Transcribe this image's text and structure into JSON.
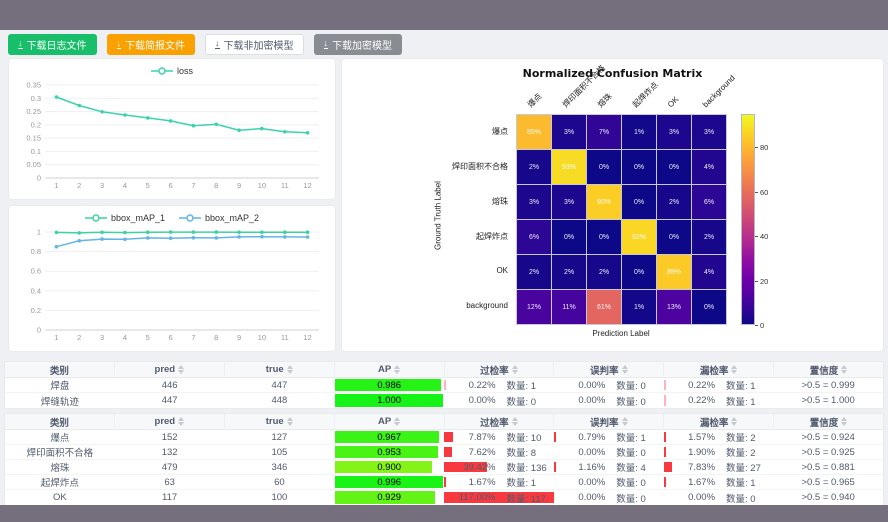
{
  "toolbar": {
    "download_icon": "↓",
    "buttons": [
      {
        "label": "下载日志文件",
        "variant": "success"
      },
      {
        "label": "下载简报文件",
        "variant": "warning"
      },
      {
        "label": "下载非加密模型",
        "variant": "default"
      },
      {
        "label": "下载加密模型",
        "variant": "dark"
      }
    ]
  },
  "chart_data": [
    {
      "type": "line",
      "title": "",
      "legend_position": "top",
      "x": [
        1,
        2,
        3,
        4,
        5,
        6,
        7,
        8,
        9,
        10,
        11,
        12
      ],
      "ylim": [
        0,
        0.35
      ],
      "yticks": [
        0,
        0.05,
        0.1,
        0.15,
        0.2,
        0.25,
        0.3,
        0.35
      ],
      "grid": true,
      "series": [
        {
          "name": "loss",
          "color": "#3bd2ad",
          "values": [
            0.305,
            0.273,
            0.249,
            0.237,
            0.226,
            0.215,
            0.197,
            0.202,
            0.18,
            0.186,
            0.174,
            0.17
          ]
        }
      ]
    },
    {
      "type": "line",
      "title": "",
      "legend_position": "top",
      "x": [
        1,
        2,
        3,
        4,
        5,
        6,
        7,
        8,
        9,
        10,
        11,
        12
      ],
      "ylim": [
        0,
        1
      ],
      "yticks": [
        0,
        0.2,
        0.4,
        0.6,
        0.8,
        1
      ],
      "grid": true,
      "series": [
        {
          "name": "bbox_mAP_1",
          "color": "#3dd2a0",
          "values": [
            0.996,
            0.991,
            0.997,
            0.994,
            0.998,
            0.999,
            0.999,
            0.999,
            0.998,
            0.998,
            0.998,
            0.998
          ]
        },
        {
          "name": "bbox_mAP_2",
          "color": "#64b4e4",
          "values": [
            0.85,
            0.91,
            0.928,
            0.925,
            0.94,
            0.937,
            0.941,
            0.94,
            0.95,
            0.952,
            0.95,
            0.949
          ]
        }
      ]
    },
    {
      "type": "heatmap",
      "title": "Normalized Confusion Matrix",
      "xlabel": "Prediction Label",
      "ylabel": "Ground Truth Label",
      "colormap": "plasma",
      "vmax": 95,
      "colorbar_ticks": [
        0,
        20,
        40,
        60,
        80
      ],
      "labels": [
        "爆点",
        "焊印面积不合格",
        "熔珠",
        "起焊炸点",
        "OK",
        "background"
      ],
      "unit": "%",
      "matrix": [
        [
          85,
          3,
          7,
          1,
          3,
          3
        ],
        [
          2,
          93,
          0,
          0,
          0,
          4
        ],
        [
          3,
          3,
          90,
          0,
          2,
          6
        ],
        [
          6,
          0,
          0,
          92,
          0,
          2
        ],
        [
          2,
          2,
          2,
          0,
          89,
          4
        ],
        [
          12,
          11,
          61,
          1,
          13,
          0
        ]
      ]
    }
  ],
  "tables": [
    {
      "rate_bar_color": "#ffb3c1",
      "headers": [
        {
          "label": "类别",
          "sortable": false
        },
        {
          "label": "pred",
          "sortable": true
        },
        {
          "label": "true",
          "sortable": true
        },
        {
          "label": "AP",
          "sortable": true
        },
        {
          "label": "过检率",
          "sortable": true
        },
        {
          "label": "误判率",
          "sortable": true
        },
        {
          "label": "漏检率",
          "sortable": true
        },
        {
          "label": "置信度",
          "sortable": true
        }
      ],
      "rows": [
        {
          "class": "焊盘",
          "pred": "446",
          "true": "447",
          "ap": "0.986",
          "rates": [
            {
              "pct": "0.22%",
              "count": "数量: 1"
            },
            {
              "pct": "0.00%",
              "count": "数量: 0"
            },
            {
              "pct": "0.22%",
              "count": "数量: 1"
            }
          ],
          "conf": ">0.5 = 0.999"
        },
        {
          "class": "焊缝轨迹",
          "pred": "447",
          "true": "448",
          "ap": "1.000",
          "rates": [
            {
              "pct": "0.00%",
              "count": "数量: 0"
            },
            {
              "pct": "0.00%",
              "count": "数量: 0"
            },
            {
              "pct": "0.22%",
              "count": "数量: 1"
            }
          ],
          "conf": ">0.5 = 1.000"
        }
      ]
    },
    {
      "rate_bar_color": "#f83a40",
      "headers": [
        {
          "label": "类别",
          "sortable": false
        },
        {
          "label": "pred",
          "sortable": true
        },
        {
          "label": "true",
          "sortable": true
        },
        {
          "label": "AP",
          "sortable": true
        },
        {
          "label": "过检率",
          "sortable": true
        },
        {
          "label": "误判率",
          "sortable": true
        },
        {
          "label": "漏检率",
          "sortable": true
        },
        {
          "label": "置信度",
          "sortable": true
        }
      ],
      "rows": [
        {
          "class": "爆点",
          "pred": "152",
          "true": "127",
          "ap": "0.967",
          "rates": [
            {
              "pct": "7.87%",
              "count": "数量: 10"
            },
            {
              "pct": "0.79%",
              "count": "数量: 1"
            },
            {
              "pct": "1.57%",
              "count": "数量: 2"
            }
          ],
          "conf": ">0.5 = 0.924"
        },
        {
          "class": "焊印面积不合格",
          "pred": "132",
          "true": "105",
          "ap": "0.953",
          "rates": [
            {
              "pct": "7.62%",
              "count": "数量: 8"
            },
            {
              "pct": "0.00%",
              "count": "数量: 0"
            },
            {
              "pct": "1.90%",
              "count": "数量: 2"
            }
          ],
          "conf": ">0.5 = 0.925"
        },
        {
          "class": "熔珠",
          "pred": "479",
          "true": "346",
          "ap": "0.900",
          "rates": [
            {
              "pct": "39.42%",
              "count": "数量: 136"
            },
            {
              "pct": "1.16%",
              "count": "数量: 4"
            },
            {
              "pct": "7.83%",
              "count": "数量: 27"
            }
          ],
          "conf": ">0.5 = 0.881"
        },
        {
          "class": "起焊炸点",
          "pred": "63",
          "true": "60",
          "ap": "0.996",
          "rates": [
            {
              "pct": "1.67%",
              "count": "数量: 1"
            },
            {
              "pct": "0.00%",
              "count": "数量: 0"
            },
            {
              "pct": "1.67%",
              "count": "数量: 1"
            }
          ],
          "conf": ">0.5 = 0.965"
        },
        {
          "class": "OK",
          "pred": "117",
          "true": "100",
          "ap": "0.929",
          "rates": [
            {
              "pct": "117.00%",
              "count": "数量: 117"
            },
            {
              "pct": "0.00%",
              "count": "数量: 0"
            },
            {
              "pct": "0.00%",
              "count": "数量: 0"
            }
          ],
          "conf": ">0.5 = 0.940"
        }
      ]
    }
  ]
}
